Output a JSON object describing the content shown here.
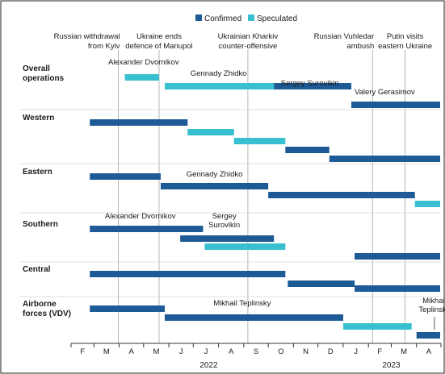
{
  "chart_data": {
    "type": "gantt-timeline",
    "legend": [
      {
        "name": "Confirmed",
        "color": "#1d5a96"
      },
      {
        "name": "Speculated",
        "color": "#39c0d0"
      }
    ],
    "legend_position": "top-right",
    "x_axis": {
      "start": "2022-02-01",
      "end": "2023-05-01",
      "month_ticks": [
        "F",
        "M",
        "A",
        "M",
        "J",
        "J",
        "A",
        "S",
        "O",
        "N",
        "D",
        "J",
        "F",
        "M",
        "A"
      ],
      "year_labels": [
        "2022",
        "2023"
      ]
    },
    "events": [
      {
        "lines": [
          "Russian withdrawal",
          "from Kyiv"
        ],
        "date": "2022-03-31"
      },
      {
        "lines": [
          "Ukraine ends",
          "defence of Mariupol"
        ],
        "date": "2022-05-20"
      },
      {
        "lines": [
          "Ukrainian Kharkiv",
          "counter-offensive"
        ],
        "date": "2022-09-06"
      },
      {
        "lines": [
          "Russian Vuhledar",
          "ambush"
        ],
        "date": "2023-02-06"
      },
      {
        "lines": [
          "Putin visits",
          "eastern Ukraine"
        ],
        "date": "2023-03-18"
      }
    ],
    "rows": [
      {
        "label_lines": [
          "Overall",
          "operations"
        ],
        "bars": [
          {
            "start": "2022-04-08",
            "end": "2022-05-20",
            "status": "Speculated"
          },
          {
            "start": "2022-05-27",
            "end": "2022-10-08",
            "status": "Speculated"
          },
          {
            "start": "2022-10-08",
            "end": "2023-01-11",
            "status": "Confirmed"
          },
          {
            "start": "2023-01-11",
            "end": "2023-04-30",
            "status": "Confirmed"
          }
        ]
      },
      {
        "label_lines": [
          "Western"
        ],
        "bars": [
          {
            "start": "2022-02-24",
            "end": "2022-06-24",
            "status": "Confirmed"
          },
          {
            "start": "2022-06-24",
            "end": "2022-08-20",
            "status": "Speculated"
          },
          {
            "start": "2022-08-20",
            "end": "2022-10-22",
            "status": "Speculated"
          },
          {
            "start": "2022-10-22",
            "end": "2022-12-15",
            "status": "Confirmed"
          },
          {
            "start": "2022-12-15",
            "end": "2023-04-30",
            "status": "Confirmed"
          }
        ]
      },
      {
        "label_lines": [
          "Eastern"
        ],
        "bars": [
          {
            "start": "2022-02-24",
            "end": "2022-05-22",
            "status": "Confirmed"
          },
          {
            "start": "2022-05-22",
            "end": "2022-10-01",
            "status": "Confirmed"
          },
          {
            "start": "2022-10-01",
            "end": "2023-03-30",
            "status": "Confirmed"
          },
          {
            "start": "2023-03-30",
            "end": "2023-04-30",
            "status": "Speculated"
          }
        ]
      },
      {
        "label_lines": [
          "Southern"
        ],
        "bars": [
          {
            "start": "2022-02-24",
            "end": "2022-07-13",
            "status": "Confirmed"
          },
          {
            "start": "2022-06-15",
            "end": "2022-10-08",
            "status": "Confirmed"
          },
          {
            "start": "2022-07-15",
            "end": "2022-10-22",
            "status": "Speculated"
          },
          {
            "start": "2023-01-15",
            "end": "2023-04-30",
            "status": "Confirmed"
          }
        ]
      },
      {
        "label_lines": [
          "Central"
        ],
        "bars": [
          {
            "start": "2022-02-24",
            "end": "2022-10-22",
            "status": "Confirmed"
          },
          {
            "start": "2022-10-25",
            "end": "2023-01-15",
            "status": "Confirmed"
          },
          {
            "start": "2023-01-15",
            "end": "2023-04-30",
            "status": "Confirmed"
          }
        ]
      },
      {
        "label_lines": [
          "Airborne",
          "forces (VDV)"
        ],
        "bars": [
          {
            "start": "2022-02-24",
            "end": "2022-05-27",
            "status": "Confirmed"
          },
          {
            "start": "2022-05-27",
            "end": "2023-01-01",
            "status": "Confirmed"
          },
          {
            "start": "2023-01-01",
            "end": "2023-03-26",
            "status": "Speculated"
          },
          {
            "start": "2023-04-01",
            "end": "2023-04-30",
            "status": "Confirmed"
          }
        ]
      }
    ],
    "annotations": [
      {
        "row": 0,
        "lines": [
          "Alexander Dvornikov"
        ],
        "date": "2022-05-01",
        "anchor": "middle"
      },
      {
        "row": 0,
        "lines": [
          "Gennady Zhidko"
        ],
        "date": "2022-08-01",
        "anchor": "middle"
      },
      {
        "row": 0,
        "lines": [
          "Sergey Surovikin"
        ],
        "date": "2022-11-21",
        "anchor": "middle"
      },
      {
        "row": 0,
        "lines": [
          "Valery Gerasimov"
        ],
        "date": "2023-02-21",
        "anchor": "middle"
      },
      {
        "row": 2,
        "lines": [
          "Gennady Zhidko"
        ],
        "date": "2022-07-27",
        "anchor": "middle"
      },
      {
        "row": 3,
        "lines": [
          "Alexander Dvornikov"
        ],
        "date": "2022-04-27",
        "anchor": "middle"
      },
      {
        "row": 3,
        "lines": [
          "Sergey",
          "Surovikin"
        ],
        "date": "2022-08-08",
        "anchor": "middle"
      },
      {
        "row": 5,
        "lines": [
          "Mikhail Teplinsky"
        ],
        "date": "2022-08-30",
        "anchor": "middle"
      },
      {
        "row": 5,
        "lines": [
          "Mikhail",
          "Teplinsky"
        ],
        "date": "2023-04-23",
        "anchor": "middle"
      }
    ]
  }
}
